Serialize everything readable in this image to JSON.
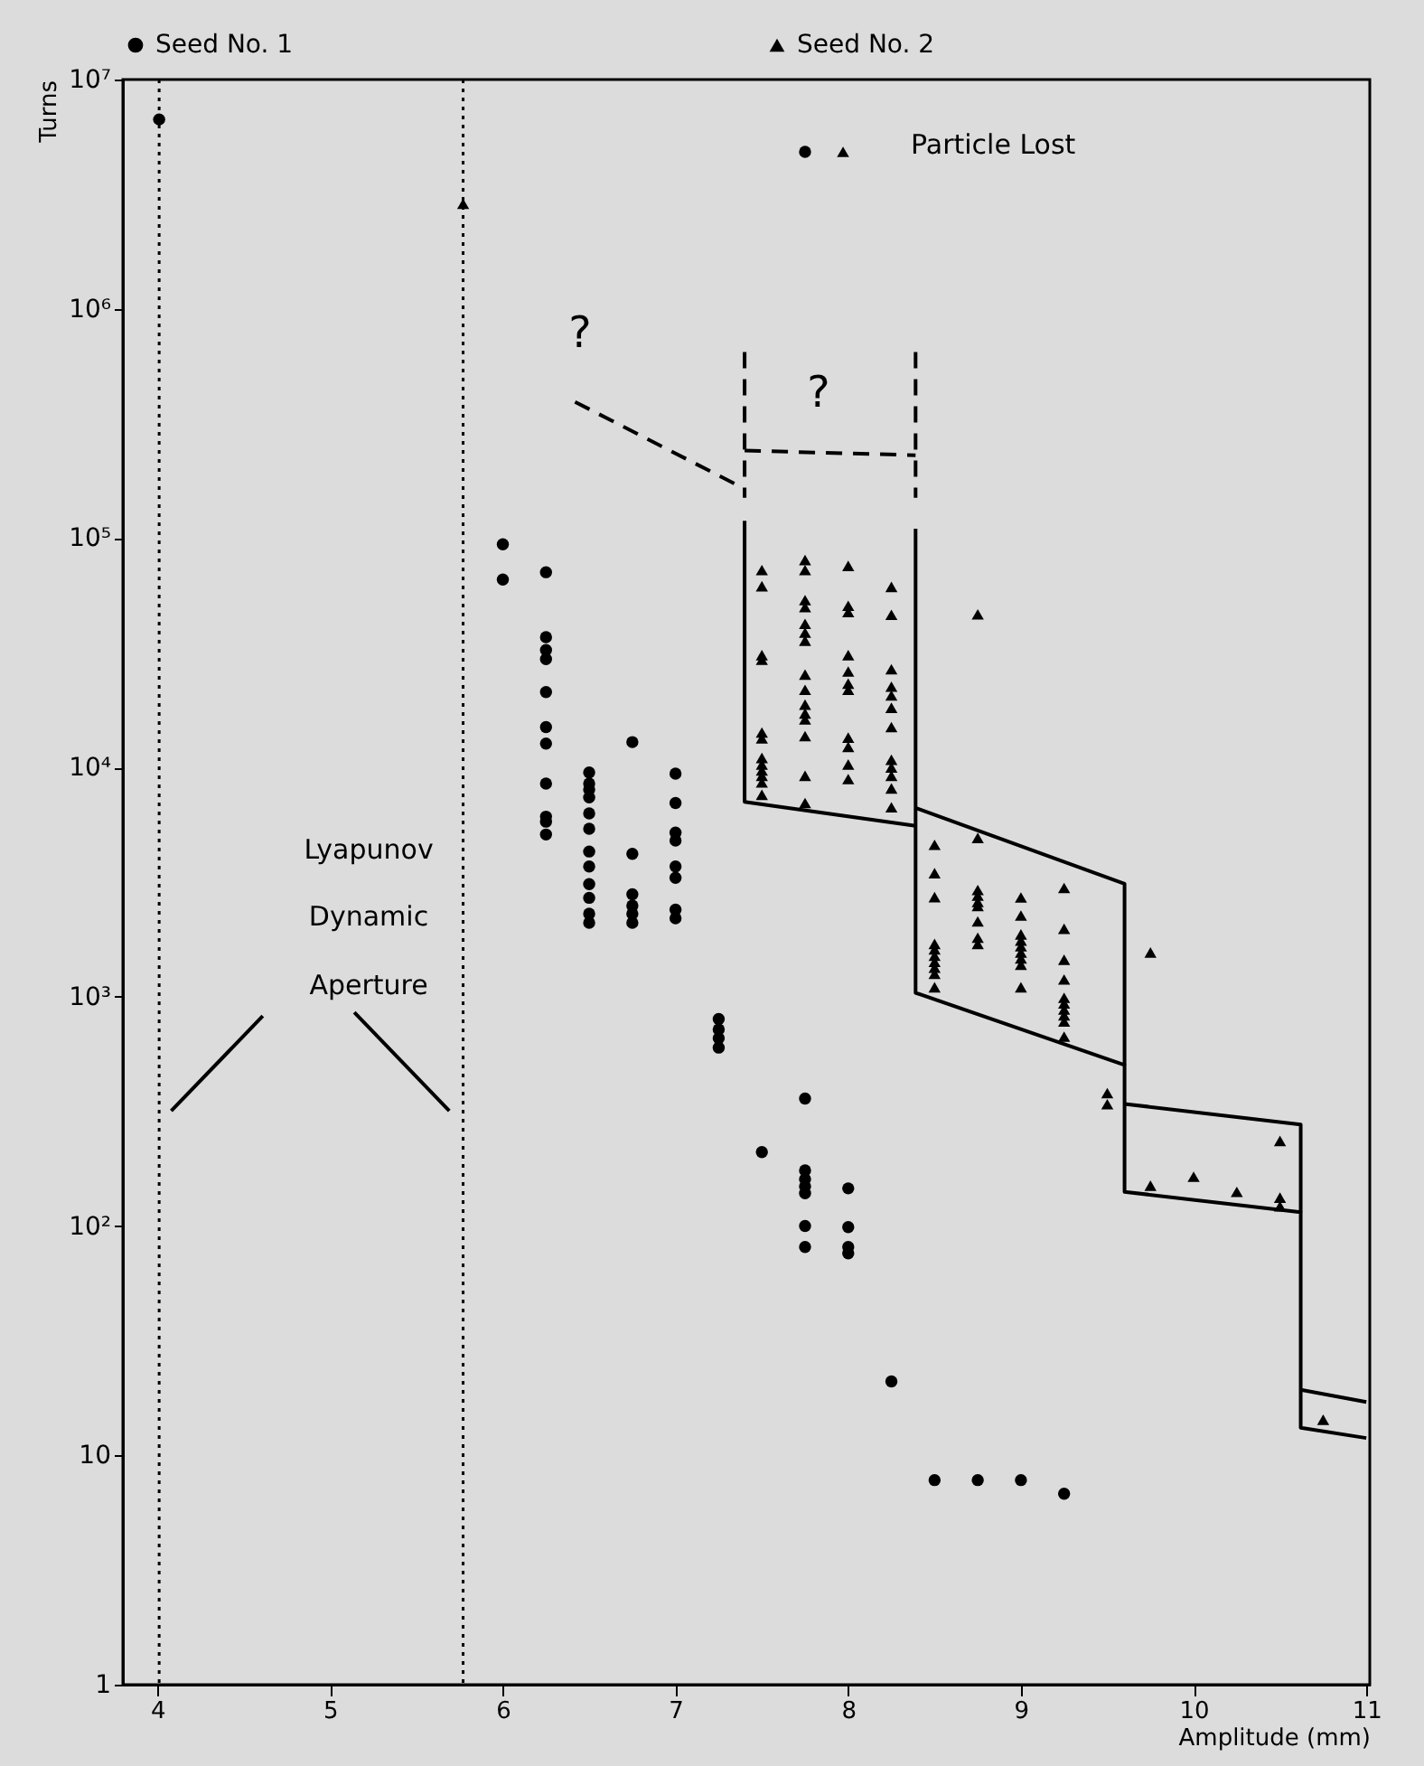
{
  "chart_data": {
    "type": "scatter",
    "xlabel": "Amplitude (mm)",
    "ylabel": "Turns",
    "log": "y",
    "grid": false,
    "legend": "top",
    "xlim": [
      3.8,
      11.02
    ],
    "xticks": [
      4,
      5,
      6,
      7,
      8,
      9,
      10,
      11
    ],
    "ylim": [
      1,
      10000000
    ],
    "yticks": [
      1,
      10,
      {
        "value": 100,
        "label": "10²"
      },
      {
        "value": 1000,
        "label": "10³"
      },
      {
        "value": 10000,
        "label": "10⁴"
      },
      {
        "value": 100000,
        "label": "10⁵"
      },
      {
        "value": 1000000,
        "label": "10⁶"
      },
      {
        "value": 10000000,
        "label": "10⁷"
      }
    ],
    "series": [
      {
        "name": "Seed No. 1",
        "color": "#000000",
        "marker": "circle",
        "x": [
          6,
          6,
          6.25,
          6.25,
          6.25,
          6.25,
          6.25,
          6.25,
          6.25,
          6.25,
          6.25,
          6.25,
          6.25,
          6.5,
          6.5,
          6.5,
          6.5,
          6.5,
          6.5,
          6.5,
          6.5,
          6.5,
          6.5,
          6.5,
          6.5,
          6.75,
          6.75,
          6.75,
          6.75,
          6.75,
          6.75,
          7,
          7,
          7,
          7,
          7,
          7,
          7,
          7,
          7.25,
          7.25,
          7.25,
          7.25,
          7.5,
          7.75,
          7.75,
          7.75,
          7.75,
          7.75,
          7.75,
          7.75,
          8,
          8,
          8,
          8,
          8.25,
          8.5,
          8.75,
          9,
          9.25
        ],
        "values": [
          94000,
          66000,
          71000,
          37000,
          32500,
          29700,
          21300,
          15000,
          12700,
          8500,
          6100,
          5800,
          5100,
          9500,
          8500,
          8000,
          7400,
          6300,
          5400,
          4300,
          3700,
          3100,
          2700,
          2300,
          2100,
          12900,
          4200,
          2800,
          2500,
          2300,
          2100,
          9400,
          7000,
          5200,
          4800,
          3700,
          3300,
          2400,
          2200,
          800,
          720,
          660,
          600,
          210,
          360,
          175,
          160,
          149,
          139,
          100,
          81,
          146,
          99,
          81,
          76,
          21,
          7.8,
          7.8,
          7.8,
          6.8
        ]
      },
      {
        "name": "Seed No. 2",
        "color": "#000000",
        "marker": "triangle",
        "x": [
          7.5,
          7.5,
          7.5,
          7.5,
          7.5,
          7.5,
          7.5,
          7.5,
          7.5,
          7.5,
          7.5,
          7.5,
          7.75,
          7.75,
          7.75,
          7.75,
          7.75,
          7.75,
          7.75,
          7.75,
          7.75,
          7.75,
          7.75,
          7.75,
          7.75,
          7.75,
          7.75,
          8,
          8,
          8,
          8,
          8,
          8,
          8,
          8,
          8,
          8,
          8,
          8.25,
          8.25,
          8.25,
          8.25,
          8.25,
          8.25,
          8.25,
          8.25,
          8.25,
          8.25,
          8.25,
          8.25,
          8.5,
          8.5,
          8.5,
          8.5,
          8.5,
          8.5,
          8.5,
          8.5,
          8.5,
          8.5,
          8.75,
          8.75,
          8.75,
          8.75,
          8.75,
          8.75,
          8.75,
          8.75,
          8.75,
          9,
          9,
          9,
          9,
          9,
          9,
          9,
          9,
          9,
          9.25,
          9.25,
          9.25,
          9.25,
          9.25,
          9.25,
          9.25,
          9.25,
          9.25,
          9.25,
          9.5,
          9.5,
          9.75,
          9.75,
          10,
          10.25,
          10.5,
          10.5,
          10.5,
          10.75
        ],
        "values": [
          72600,
          61700,
          30900,
          29500,
          14200,
          13400,
          11000,
          10300,
          9700,
          9200,
          8600,
          7600,
          80300,
          72600,
          53700,
          50000,
          42300,
          38700,
          35700,
          25400,
          21800,
          18800,
          17200,
          16200,
          13700,
          9200,
          7000,
          75700,
          50700,
          47600,
          30900,
          26200,
          23200,
          21800,
          13500,
          12300,
          10300,
          8900,
          61300,
          46300,
          26800,
          22500,
          20600,
          18200,
          15000,
          10800,
          10000,
          9200,
          8100,
          6700,
          4600,
          3460,
          2720,
          1700,
          1610,
          1510,
          1420,
          1340,
          1260,
          1100,
          46500,
          4930,
          2920,
          2760,
          2590,
          2490,
          2130,
          1810,
          1700,
          2710,
          2260,
          1870,
          1760,
          1660,
          1560,
          1470,
          1380,
          1100,
          2980,
          1980,
          1450,
          1190,
          990,
          935,
          880,
          830,
          780,
          670,
          380,
          340,
          1560,
          150,
          164,
          141,
          235,
          133,
          122,
          14.3
        ]
      },
      {
        "color": "#000000",
        "marker": "circle",
        "x": [
          4.01
        ],
        "values": [
          6700000
        ]
      },
      {
        "color": "#000000",
        "marker": "triangle",
        "x": [
          5.77
        ],
        "values": [
          2870000
        ]
      },
      {
        "color": "#000000",
        "marker": "circle",
        "x": [
          7.75
        ],
        "values": [
          4840000
        ]
      },
      {
        "color": "#000000",
        "marker": "triangle",
        "x": [
          7.97
        ],
        "values": [
          4840000
        ]
      },
      {
        "type": "line",
        "color": "#000000",
        "line_style": "solid",
        "x": [
          7.4,
          7.4,
          8.39
        ],
        "values": [
          119000,
          7070,
          5560
        ]
      },
      {
        "type": "line",
        "color": "#000000",
        "line_style": "solid",
        "x": [
          8.39,
          8.39,
          9.6,
          9.6,
          10.62,
          10.62,
          11.0
        ],
        "values": [
          110000,
          1040,
          504,
          141,
          115,
          13.2,
          11.9
        ]
      },
      {
        "type": "line",
        "color": "#000000",
        "line_style": "solid",
        "x": [
          8.39,
          9.6,
          9.6
        ],
        "values": [
          6660,
          3110,
          504
        ]
      },
      {
        "type": "line",
        "color": "#000000",
        "line_style": "solid",
        "x": [
          9.6,
          10.62,
          10.62
        ],
        "values": [
          341,
          277,
          115
        ]
      },
      {
        "type": "line",
        "color": "#000000",
        "line_style": "solid",
        "x": [
          10.62,
          11.0
        ],
        "values": [
          19.3,
          17.1
        ]
      },
      {
        "type": "line",
        "color": "#000000",
        "line_style": "dashed",
        "x": [
          7.4,
          7.4
        ],
        "values": [
          648000,
          150000
        ]
      },
      {
        "type": "line",
        "color": "#000000",
        "line_style": "dashed",
        "x": [
          8.39,
          8.39
        ],
        "values": [
          648000,
          150000
        ]
      },
      {
        "type": "line",
        "color": "#000000",
        "line_style": "dashed",
        "x": [
          7.4,
          8.39
        ],
        "values": [
          241000,
          230000
        ]
      },
      {
        "type": "line",
        "color": "#000000",
        "line_style": "dashed",
        "x": [
          7.34,
          6.37
        ],
        "values": [
          173000,
          410000
        ]
      },
      {
        "type": "line",
        "color": "#000000",
        "line_style": "solid",
        "x": [
          4.61,
          4.08
        ],
        "values": [
          824,
          318
        ]
      },
      {
        "type": "line",
        "color": "#000000",
        "line_style": "solid",
        "x": [
          5.14,
          5.69
        ],
        "values": [
          855,
          318
        ]
      }
    ],
    "ref_lines": [
      {
        "axis": "x",
        "value": 4.01,
        "line_style": "dotted",
        "color": "#000000"
      },
      {
        "axis": "x",
        "value": 5.77,
        "line_style": "dotted",
        "color": "#000000"
      }
    ],
    "annotations": [
      "Particle Lost",
      "?",
      "?",
      "Lyapunov",
      "Dynamic",
      "Aperture"
    ]
  }
}
